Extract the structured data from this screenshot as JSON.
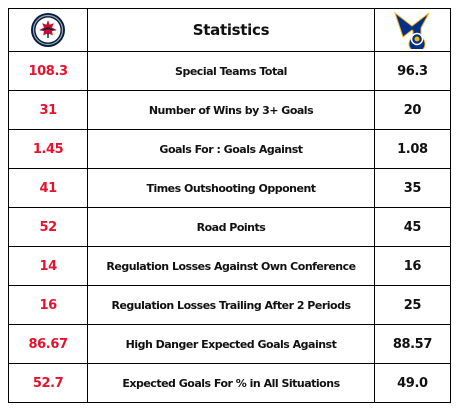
{
  "header": {
    "title": "Statistics",
    "left_team_logo": "winnipeg-jets-logo",
    "right_team_logo": "st-louis-blues-logo"
  },
  "rows": [
    {
      "left": "108.3",
      "label": "Special Teams Total",
      "right": "96.3"
    },
    {
      "left": "31",
      "label": "Number of Wins by 3+ Goals",
      "right": "20"
    },
    {
      "left": "1.45",
      "label": "Goals For : Goals Against",
      "right": "1.08"
    },
    {
      "left": "41",
      "label": "Times Outshooting Opponent",
      "right": "35"
    },
    {
      "left": "52",
      "label": "Road Points",
      "right": "45"
    },
    {
      "left": "14",
      "label": "Regulation Losses Against Own Conference",
      "right": "16"
    },
    {
      "left": "16",
      "label": "Regulation Losses Trailing After 2 Periods",
      "right": "25"
    },
    {
      "left": "86.67",
      "label": "High Danger Expected Goals Against",
      "right": "88.57"
    },
    {
      "left": "52.7",
      "label": "Expected Goals For % in All Situations",
      "right": "49.0"
    }
  ],
  "colors": {
    "left_value": "#e8112d",
    "text": "#111111",
    "jets_navy": "#041e42",
    "blues_blue": "#002f87"
  }
}
